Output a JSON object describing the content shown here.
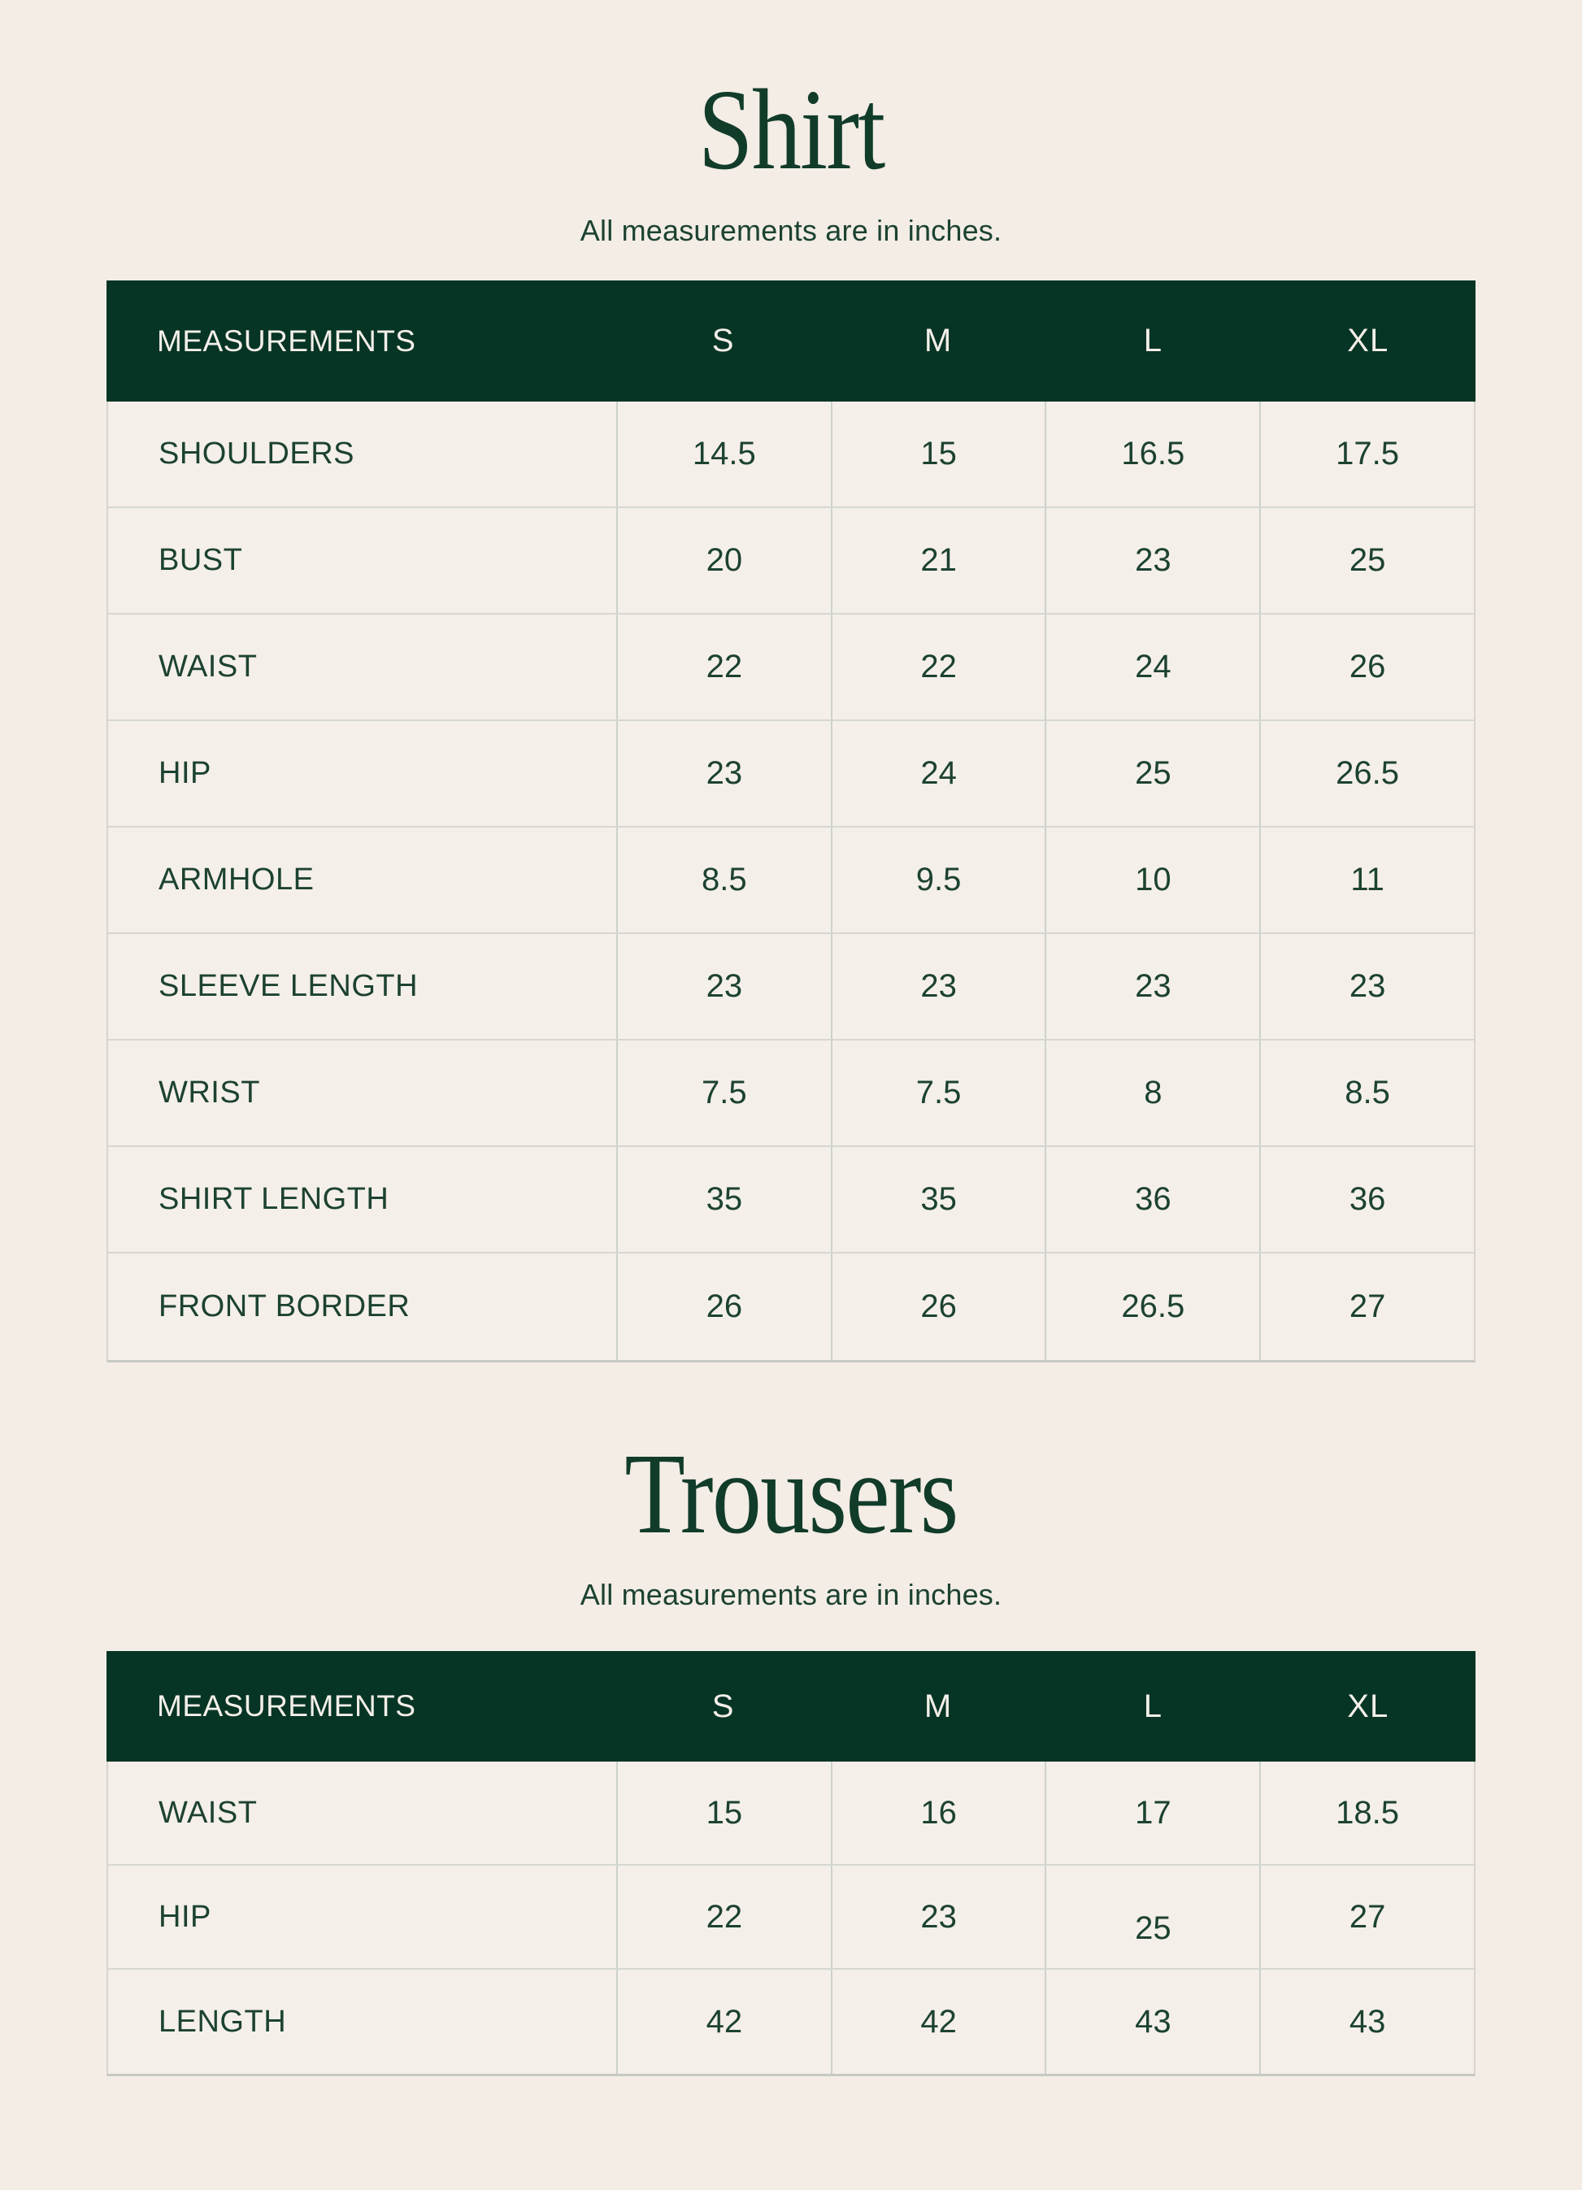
{
  "colors": {
    "page_background": "#f3ede6",
    "cell_background": "#f5efe9",
    "header_background": "#073525",
    "header_text": "#f4efe9",
    "title_text": "#123c2a",
    "body_text": "#1c4231"
  },
  "sections": [
    {
      "title": "Shirt",
      "subtitle": "All measurements are in inches.",
      "table": {
        "columns": [
          "MEASUREMENTS",
          "S",
          "M",
          "L",
          "XL"
        ],
        "rows": [
          {
            "label": "SHOULDERS",
            "values": [
              "14.5",
              "15",
              "16.5",
              "17.5"
            ]
          },
          {
            "label": "BUST",
            "values": [
              "20",
              "21",
              "23",
              "25"
            ]
          },
          {
            "label": "WAIST",
            "values": [
              "22",
              "22",
              "24",
              "26"
            ]
          },
          {
            "label": "HIP",
            "values": [
              "23",
              "24",
              "25",
              "26.5"
            ]
          },
          {
            "label": "ARMHOLE",
            "values": [
              "8.5",
              "9.5",
              "10",
              "11"
            ]
          },
          {
            "label": "SLEEVE LENGTH",
            "values": [
              "23",
              "23",
              "23",
              "23"
            ]
          },
          {
            "label": "WRIST",
            "values": [
              "7.5",
              "7.5",
              "8",
              "8.5"
            ]
          },
          {
            "label": "SHIRT LENGTH",
            "values": [
              "35",
              "35",
              "36",
              "36"
            ]
          },
          {
            "label": "FRONT BORDER",
            "values": [
              "26",
              "26",
              "26.5",
              "27"
            ]
          }
        ]
      }
    },
    {
      "title": "Trousers",
      "subtitle": "All measurements are in inches.",
      "table": {
        "columns": [
          "MEASUREMENTS",
          "S",
          "M",
          "L",
          "XL"
        ],
        "rows": [
          {
            "label": "WAIST",
            "values": [
              "15",
              "16",
              "17",
              "18.5"
            ]
          },
          {
            "label": "HIP",
            "values": [
              "22",
              "23",
              "25",
              "27"
            ]
          },
          {
            "label": "LENGTH",
            "values": [
              "42",
              "42",
              "43",
              "43"
            ]
          }
        ]
      }
    }
  ]
}
